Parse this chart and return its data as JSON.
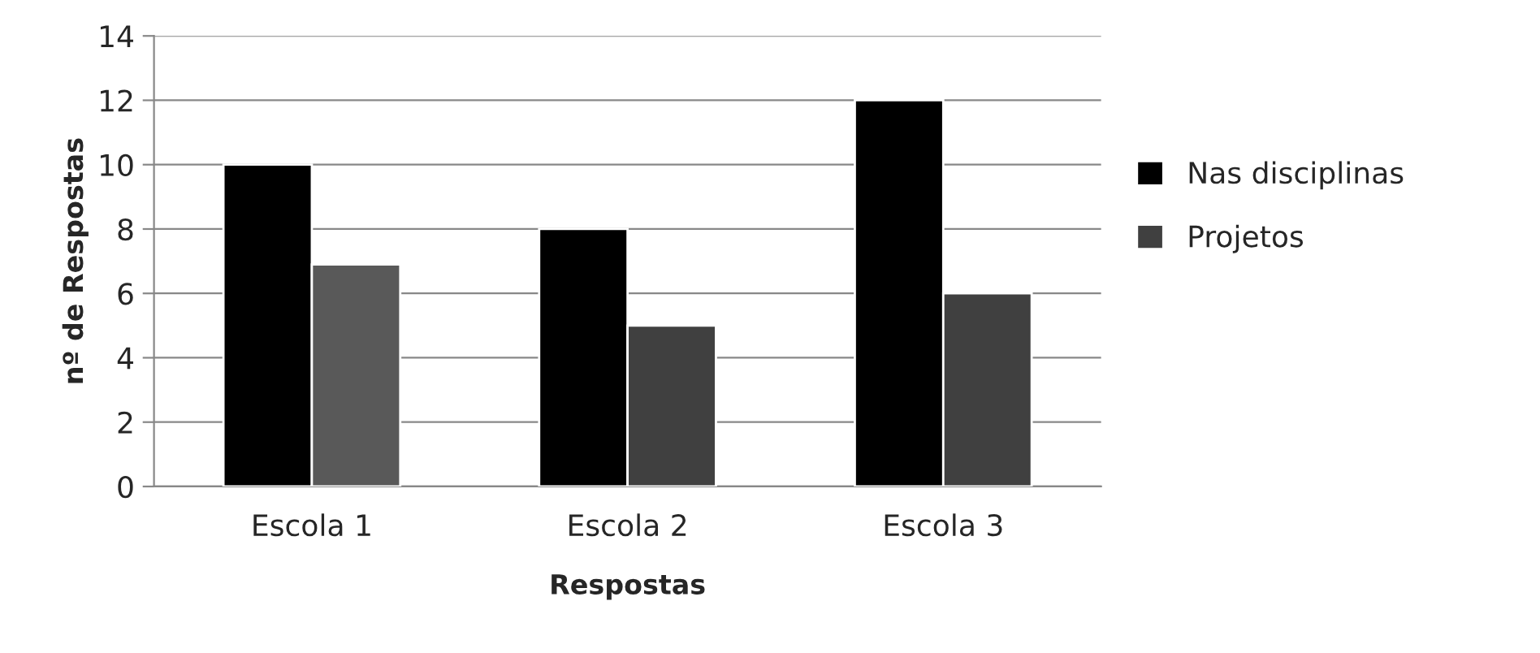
{
  "chart_data": {
    "type": "bar",
    "xlabel": "Respostas",
    "ylabel": "nº de Respostas",
    "categories": [
      "Escola 1",
      "Escola 2",
      "Escola 3"
    ],
    "series": [
      {
        "name": "Nas disciplinas",
        "color": "#000000",
        "values": [
          10,
          8,
          12
        ]
      },
      {
        "name": "Projetos",
        "color": "#404040",
        "colors": [
          "#595959",
          "#404040",
          "#404040"
        ],
        "values": [
          6.9,
          5,
          6
        ]
      }
    ],
    "ylim": [
      0,
      14
    ],
    "yticks": [
      0,
      2,
      4,
      6,
      8,
      10,
      12,
      14
    ],
    "grid": "y",
    "legend": "right"
  }
}
